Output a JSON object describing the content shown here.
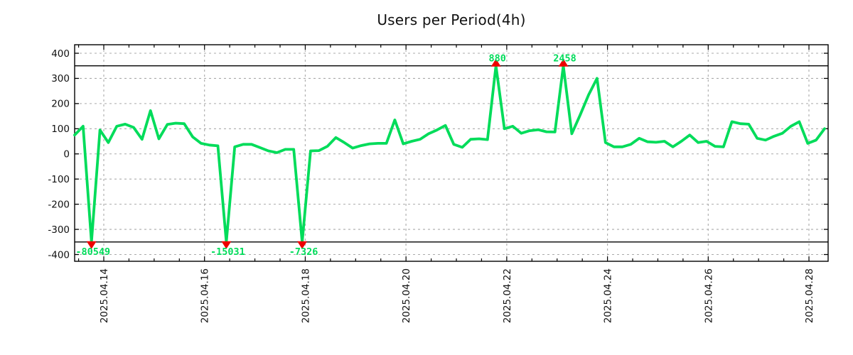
{
  "chart_data": {
    "type": "line",
    "title": "Users per Period(4h)",
    "period": "4h",
    "line_color": "#00dc5a",
    "marker_color": "#ee0000",
    "grid_color": "#aaaaaa",
    "axis_color": "#000000",
    "label_color": "#111111",
    "grid": "dashed",
    "legend": null,
    "ylim": [
      -427,
      434
    ],
    "yticks": [
      400,
      300,
      200,
      100,
      0,
      -100,
      -200,
      -300,
      -400
    ],
    "clip_lines": [
      350,
      -350
    ],
    "clip_threshold": 350,
    "xtick_labels": [
      "2025.04.14",
      "2025.04.16",
      "2025.04.18",
      "2025.04.20",
      "2025.04.22",
      "2025.04.24",
      "2025.04.26",
      "2025.04.28"
    ],
    "values": [
      75,
      110,
      -80549,
      95,
      45,
      110,
      118,
      105,
      58,
      172,
      60,
      117,
      122,
      120,
      68,
      42,
      35,
      32,
      -15031,
      28,
      38,
      38,
      25,
      12,
      5,
      18,
      18,
      -7326,
      12,
      13,
      30,
      65,
      45,
      23,
      33,
      40,
      42,
      42,
      135,
      40,
      50,
      58,
      80,
      95,
      113,
      38,
      26,
      58,
      60,
      57,
      880,
      100,
      110,
      82,
      92,
      96,
      88,
      87,
      2458,
      80,
      155,
      235,
      300,
      45,
      28,
      28,
      38,
      62,
      48,
      46,
      50,
      28,
      50,
      75,
      45,
      50,
      30,
      28,
      128,
      120,
      118,
      62,
      55,
      70,
      82,
      110,
      128,
      42,
      55,
      100
    ],
    "annotations": [
      {
        "index": 2,
        "label": "-80549",
        "direction": "down"
      },
      {
        "index": 18,
        "label": "-15031",
        "direction": "down"
      },
      {
        "index": 27,
        "label": "-7326",
        "direction": "down"
      },
      {
        "index": 50,
        "label": "880",
        "direction": "up"
      },
      {
        "index": 58,
        "label": "2458",
        "direction": "up"
      }
    ]
  }
}
